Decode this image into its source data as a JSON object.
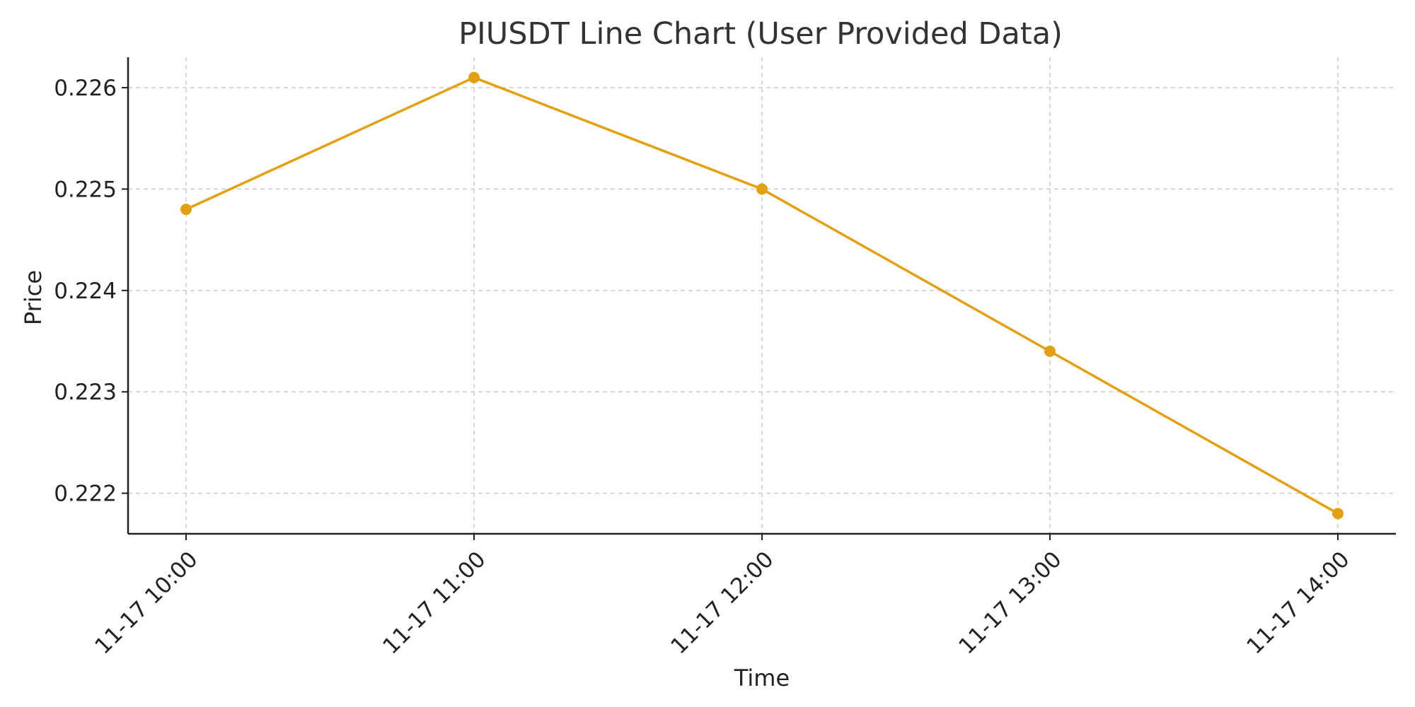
{
  "chart_data": {
    "type": "line",
    "title": "PIUSDT Line Chart (User Provided Data)",
    "xlabel": "Time",
    "ylabel": "Price",
    "x": [
      "11-17 10:00",
      "11-17 11:00",
      "11-17 12:00",
      "11-17 13:00",
      "11-17 14:00"
    ],
    "series": [
      {
        "values": [
          0.2248,
          0.2261,
          0.225,
          0.2234,
          0.2218
        ],
        "color": "#E3A010"
      }
    ],
    "y_ticks": [
      "0.222",
      "0.223",
      "0.224",
      "0.225",
      "0.226"
    ],
    "ylim": [
      0.2216,
      0.2263
    ],
    "grid": true
  }
}
